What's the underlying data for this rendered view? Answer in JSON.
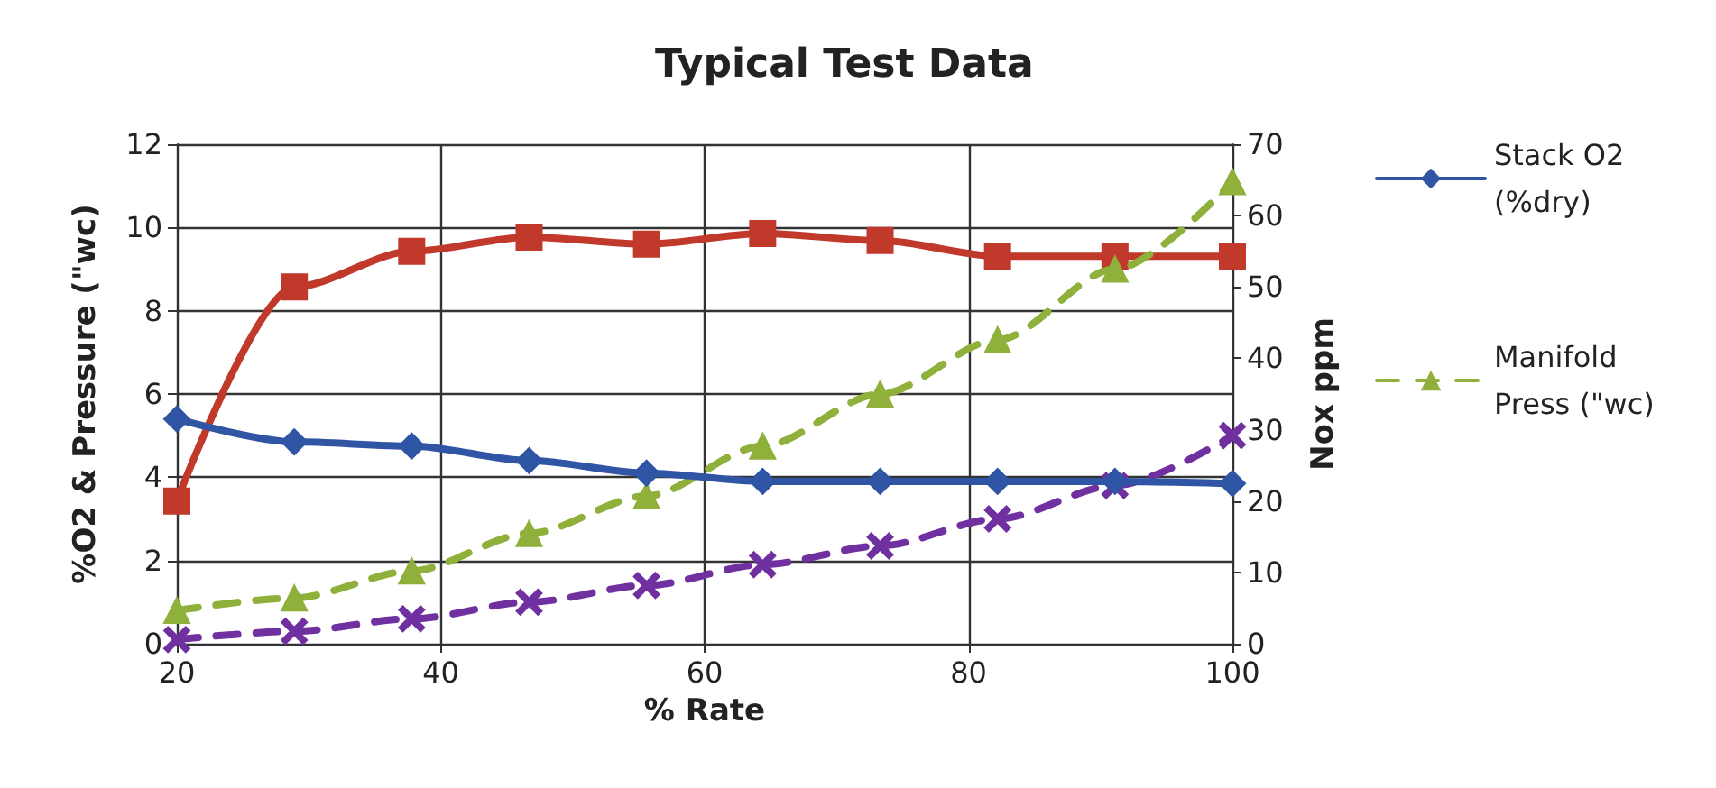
{
  "chart_data": {
    "type": "line",
    "title": "Typical Test Data",
    "xlabel": "% Rate",
    "ylabel": "%O2 & Pressure (\"wc)",
    "y2label": "Nox ppm",
    "x": [
      20,
      28.9,
      37.8,
      46.7,
      55.6,
      64.4,
      73.3,
      82.2,
      91.1,
      100
    ],
    "xlim": [
      20,
      100
    ],
    "xticks": [
      20,
      40,
      60,
      80,
      100
    ],
    "ylim": [
      0,
      12
    ],
    "yticks": [
      0,
      2,
      4,
      6,
      8,
      10,
      12
    ],
    "y2lim": [
      0,
      70
    ],
    "y2ticks": [
      0,
      10,
      20,
      30,
      40,
      50,
      60,
      70
    ],
    "grid": true,
    "legend": "right",
    "series": [
      {
        "name": "Stack O2 (%dry)",
        "color": "#2f55a4",
        "marker": "diamond",
        "line_style": "solid",
        "values": [
          5.4,
          4.85,
          4.75,
          4.4,
          4.1,
          3.9,
          3.9,
          3.9,
          3.9,
          3.85
        ]
      },
      {
        "name": "Manifold Press (\"wc)",
        "color": "#8fb03a",
        "marker": "triangle",
        "line_style": "dashed",
        "values": [
          0.8,
          1.1,
          1.75,
          2.65,
          3.55,
          4.75,
          6.0,
          7.3,
          9.0,
          11.1
        ]
      },
      {
        "color": "#c0392b",
        "marker": "square",
        "line_style": "solid",
        "axis": "y2",
        "values": [
          20,
          50,
          55,
          57,
          56,
          57.5,
          56.5,
          54.3,
          54.3,
          54.3
        ]
      },
      {
        "color": "#7030a0",
        "marker": "cross",
        "line_style": "dashed",
        "values": [
          0.1,
          0.3,
          0.6,
          1.0,
          1.4,
          1.9,
          2.35,
          3.0,
          3.8,
          5.0
        ]
      }
    ]
  }
}
